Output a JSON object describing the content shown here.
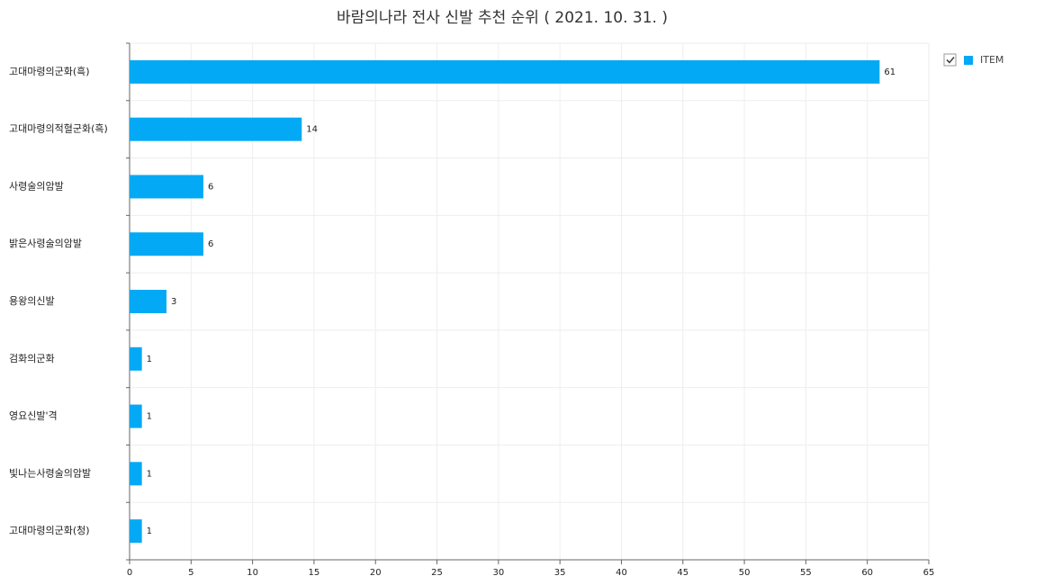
{
  "chart_data": {
    "type": "bar",
    "orientation": "horizontal",
    "title": "바람의나라 전사 신발 추천 순위 ( 2021. 10. 31. )",
    "categories": [
      "고대마령의군화(흑)",
      "고대마령의적혈군화(흑)",
      "사령술의암발",
      "밝은사령술의암발",
      "용왕의신발",
      "검화의군화",
      "영요신발'격",
      "빛나는사령술의암발",
      "고대마령의군화(청)"
    ],
    "series": [
      {
        "name": "ITEM",
        "color": "#03a9f4",
        "values": [
          61,
          14,
          6,
          6,
          3,
          1,
          1,
          1,
          1
        ]
      }
    ],
    "xlim": [
      0,
      65
    ],
    "xticks": [
      0,
      5,
      10,
      15,
      20,
      25,
      30,
      35,
      40,
      45,
      50,
      55,
      60,
      65
    ],
    "grid": true,
    "legend": "top-right"
  }
}
